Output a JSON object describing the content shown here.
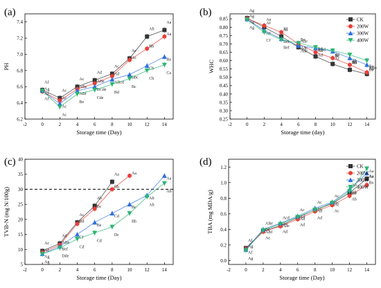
{
  "chart_data": [
    {
      "type": "line",
      "panel_label": "(a)",
      "xlabel": "Storage time (Day)",
      "ylabel": "PH",
      "xlim": [
        -2,
        15
      ],
      "ylim": [
        6.2,
        7.5
      ],
      "xticks": [
        "-2",
        "0",
        "2",
        "4",
        "6",
        "8",
        "10",
        "12",
        "14"
      ],
      "yticks": [
        "6.2",
        "6.4",
        "6.6",
        "6.8",
        "7.0",
        "7.2",
        "7.4"
      ],
      "legend": null,
      "x": [
        0,
        2,
        4,
        6,
        8,
        10,
        12,
        14
      ],
      "series": [
        {
          "marker": "square",
          "color": "#333333",
          "values": [
            6.56,
            6.46,
            6.6,
            6.68,
            6.76,
            6.95,
            7.22,
            7.3
          ],
          "labels": [
            "Af",
            "Ac",
            "Ac",
            "Ad",
            "Ac",
            "Ac",
            "Ab",
            "Aa"
          ]
        },
        {
          "marker": "circle",
          "color": "#e8403a",
          "values": [
            6.54,
            6.43,
            6.57,
            6.64,
            6.73,
            6.93,
            7.07,
            7.22
          ],
          "labels": [
            "Ag",
            "Ac",
            "ABe",
            "ABe",
            "Ad",
            "Ac",
            "Bb",
            "Aa"
          ]
        },
        {
          "marker": "triangle",
          "color": "#2f6fe0",
          "values": [
            6.55,
            6.39,
            6.55,
            6.6,
            6.69,
            6.75,
            6.86,
            6.97
          ],
          "labels": [
            "Af",
            "Ac",
            "ABf",
            "BCde",
            "ABcd",
            "Bbc",
            "Cb",
            "Ba"
          ]
        },
        {
          "marker": "tri-down",
          "color": "#2bb673",
          "values": [
            6.55,
            6.35,
            6.51,
            6.56,
            6.63,
            6.7,
            6.8,
            6.87
          ],
          "labels": [
            "Af",
            "Ac",
            "Be",
            "Cde",
            "Bd",
            "Bc",
            "Cb",
            "Ca"
          ]
        }
      ]
    },
    {
      "type": "line",
      "panel_label": "(b)",
      "xlabel": "Storage time (day)",
      "ylabel": "WHC",
      "xlim": [
        -2,
        15
      ],
      "ylim": [
        0.25,
        0.88
      ],
      "xticks": [
        "-2",
        "0",
        "2",
        "4",
        "6",
        "8",
        "10",
        "12",
        "14"
      ],
      "yticks": [
        "0.25",
        "0.30",
        "0.35",
        "0.40",
        "0.45",
        "0.50",
        "0.55",
        "0.60",
        "0.65",
        "0.70",
        "0.75",
        "0.80",
        "0.85"
      ],
      "legend": {
        "placement": "top-right",
        "entries": [
          "CK",
          "200W",
          "300W",
          "400W"
        ]
      },
      "x": [
        0,
        2,
        4,
        6,
        8,
        10,
        12,
        14
      ],
      "series": [
        {
          "name": "CK",
          "marker": "square",
          "color": "#333333",
          "values": [
            0.855,
            0.8,
            0.745,
            0.68,
            0.625,
            0.58,
            0.545,
            0.52
          ],
          "labels": [
            "Ag",
            "Ae",
            "Bf",
            "Be",
            "Bd",
            "Bc",
            "Bb",
            "Ba"
          ]
        },
        {
          "name": "200W",
          "marker": "circle",
          "color": "#e8403a",
          "values": [
            0.852,
            0.81,
            0.77,
            0.7,
            0.65,
            0.615,
            0.575,
            0.53
          ],
          "labels": [
            "Ag",
            "Af",
            "Af",
            "Ade",
            "ABd",
            "Bc",
            "Bb",
            "Ba"
          ]
        },
        {
          "name": "300W",
          "marker": "triangle",
          "color": "#2f6fe0",
          "values": [
            0.848,
            0.78,
            0.73,
            0.69,
            0.675,
            0.655,
            0.615,
            0.575
          ],
          "labels": [
            "Ag",
            "Af",
            "Bef",
            "Ade",
            "Ad",
            "Ac",
            "Ab",
            "ABa"
          ]
        },
        {
          "name": "400W",
          "marker": "tri-down",
          "color": "#2bb673",
          "values": [
            0.845,
            0.77,
            0.725,
            0.705,
            0.68,
            0.66,
            0.635,
            0.6
          ],
          "labels": [
            "Ag",
            "Cf",
            "Bef",
            "Ade",
            "Ad",
            "Ac",
            "Ab",
            "Aa"
          ]
        }
      ]
    },
    {
      "type": "line",
      "panel_label": "(c)",
      "xlabel": "Storage time (Day)",
      "ylabel": "TVB-N (mg N/100g)",
      "xlim": [
        -2,
        15
      ],
      "ylim": [
        5,
        40
      ],
      "xticks": [
        "-2",
        "0",
        "2",
        "4",
        "6",
        "8",
        "10",
        "12",
        "14"
      ],
      "yticks": [
        "5",
        "10",
        "15",
        "20",
        "25",
        "30",
        "35",
        "40"
      ],
      "reference_line": {
        "y": 30,
        "style": "dashed"
      },
      "legend": null,
      "x": [
        0,
        2,
        4,
        6,
        8,
        10,
        12,
        14
      ],
      "series": [
        {
          "marker": "square",
          "color": "#333333",
          "x": [
            0,
            2,
            4,
            6,
            8
          ],
          "values": [
            9.5,
            12.0,
            19.0,
            24.5,
            32.5
          ],
          "labels": [
            "Ac",
            "Ad",
            "Ac",
            "Ab",
            "Aa"
          ]
        },
        {
          "marker": "circle",
          "color": "#e8403a",
          "x": [
            0,
            2,
            4,
            6,
            8,
            10
          ],
          "values": [
            9.0,
            11.5,
            18.5,
            23.5,
            30.0,
            34.5
          ],
          "labels": [
            "Af",
            "ABe",
            "Bd",
            "Bc",
            "Bb",
            "Aa"
          ]
        },
        {
          "marker": "triangle",
          "color": "#2f6fe0",
          "x": [
            0,
            2,
            4,
            6,
            8,
            10,
            12,
            14
          ],
          "values": [
            8.5,
            11.0,
            15.0,
            19.0,
            22.0,
            25.0,
            28.0,
            34.5
          ],
          "labels": [
            "Ag",
            "Bef",
            "Cf",
            "Be",
            "Cd",
            "Bc",
            "Ab",
            "Aa"
          ]
        },
        {
          "marker": "tri-down",
          "color": "#2bb673",
          "x": [
            0,
            2,
            4,
            6,
            8,
            10,
            12,
            14
          ],
          "values": [
            8.5,
            10.5,
            13.5,
            15.5,
            17.5,
            22.0,
            27.5,
            32.0
          ],
          "labels": [
            "Ag",
            "Dde",
            "Cd",
            "Cd",
            "Dc",
            "Bb",
            "Ab",
            "Ab"
          ]
        }
      ]
    },
    {
      "type": "line",
      "panel_label": "(d)",
      "xlabel": "Storage time (Day)",
      "ylabel": "TBA (mg MDA/g)",
      "xlim": [
        -2,
        15
      ],
      "ylim": [
        -0.05,
        1.3
      ],
      "xticks": [
        "-2",
        "0",
        "2",
        "4",
        "6",
        "8",
        "10",
        "12",
        "14"
      ],
      "yticks": [
        "0.0",
        "0.2",
        "0.4",
        "0.6",
        "0.8",
        "1.0",
        "1.2"
      ],
      "legend": {
        "placement": "right",
        "entries": [
          "CK",
          "200W",
          "300W",
          "400W"
        ]
      },
      "x": [
        0,
        2,
        4,
        6,
        8,
        10,
        12,
        14
      ],
      "series": [
        {
          "name": "CK",
          "marker": "square",
          "color": "#333333",
          "values": [
            0.16,
            0.38,
            0.45,
            0.55,
            0.65,
            0.73,
            0.87,
            1.05
          ],
          "labels": [
            "Af",
            "ABe",
            "Acd",
            "Ac",
            "Ac",
            "Ac",
            "Ab",
            "Aa"
          ]
        },
        {
          "name": "200W",
          "marker": "circle",
          "color": "#e8403a",
          "values": [
            0.15,
            0.37,
            0.44,
            0.53,
            0.63,
            0.71,
            0.83,
            0.97
          ],
          "labels": [
            "Ag",
            "Be",
            "Ac",
            "Ad",
            "Ac",
            "Ac",
            "Bb",
            "Ba"
          ]
        },
        {
          "name": "300W",
          "marker": "triangle",
          "color": "#2f6fe0",
          "values": [
            0.14,
            0.4,
            0.48,
            0.57,
            0.67,
            0.75,
            0.91,
            1.12
          ],
          "labels": [
            "Af",
            "ABf",
            "Ade",
            "Ad",
            "Ad",
            "Ac",
            "Ab",
            "Aa"
          ]
        },
        {
          "name": "400W",
          "marker": "tri-down",
          "color": "#2bb673",
          "values": [
            0.13,
            0.39,
            0.47,
            0.56,
            0.65,
            0.74,
            0.89,
            1.18
          ],
          "labels": [
            "Ag",
            "Ae",
            "Ad",
            "Ad",
            "Ad",
            "Ac",
            "Ab",
            "Aa"
          ]
        }
      ]
    }
  ]
}
